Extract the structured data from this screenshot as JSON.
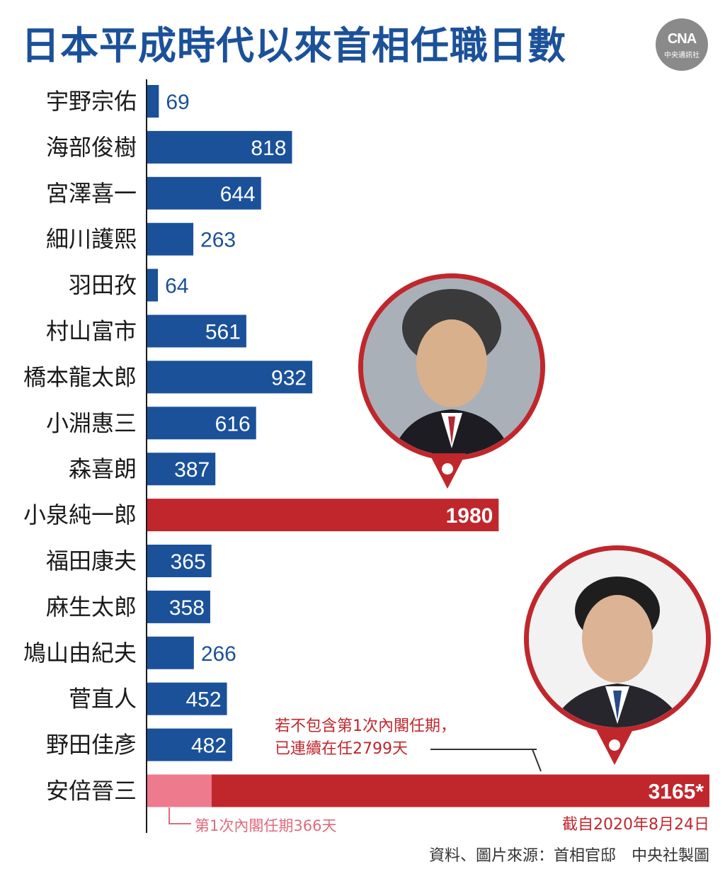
{
  "header": {
    "title": "日本平成時代以來首相任職日數",
    "logo_mark": "CNA",
    "logo_text": "中央通訊社"
  },
  "chart_data": {
    "type": "bar",
    "orientation": "horizontal",
    "title": "日本平成時代以來首相任職日數",
    "categories": [
      "宇野宗佑",
      "海部俊樹",
      "宮澤喜一",
      "細川護熙",
      "羽田孜",
      "村山富市",
      "橋本龍太郎",
      "小淵惠三",
      "森喜朗",
      "小泉純一郎",
      "福田康夫",
      "麻生太郎",
      "鳩山由紀夫",
      "菅直人",
      "野田佳彥",
      "安倍晉三"
    ],
    "values": [
      69,
      818,
      644,
      263,
      64,
      561,
      932,
      616,
      387,
      1980,
      365,
      358,
      266,
      452,
      482,
      3165
    ],
    "value_labels": [
      "69",
      "818",
      "644",
      "263",
      "64",
      "561",
      "932",
      "616",
      "387",
      "1980",
      "365",
      "358",
      "266",
      "452",
      "482",
      "3165*"
    ],
    "highlighted": [
      "小泉純一郎",
      "安倍晉三"
    ],
    "stacked_segment": {
      "category": "安倍晉三",
      "first_term_days": 366
    },
    "xlim": [
      0,
      3165
    ],
    "grid": false,
    "legend": "none"
  },
  "colors": {
    "bar": "#1b5199",
    "highlight": "#c0272d",
    "first_term": "#ee7a8e",
    "title": "#1b5199",
    "note": "#c0272d"
  },
  "annotations": {
    "abe_note_line1": "若不包含第1次內閣任期，",
    "abe_note_line2": "已連續在任2799天",
    "first_term_label": "第1次內閣任期366天",
    "as_of": "截自2020年8月24日",
    "source": "資料、圖片來源：首相官邸　中央社製圖"
  },
  "portraits": [
    {
      "name": "koizumi-portrait"
    },
    {
      "name": "abe-portrait"
    }
  ]
}
